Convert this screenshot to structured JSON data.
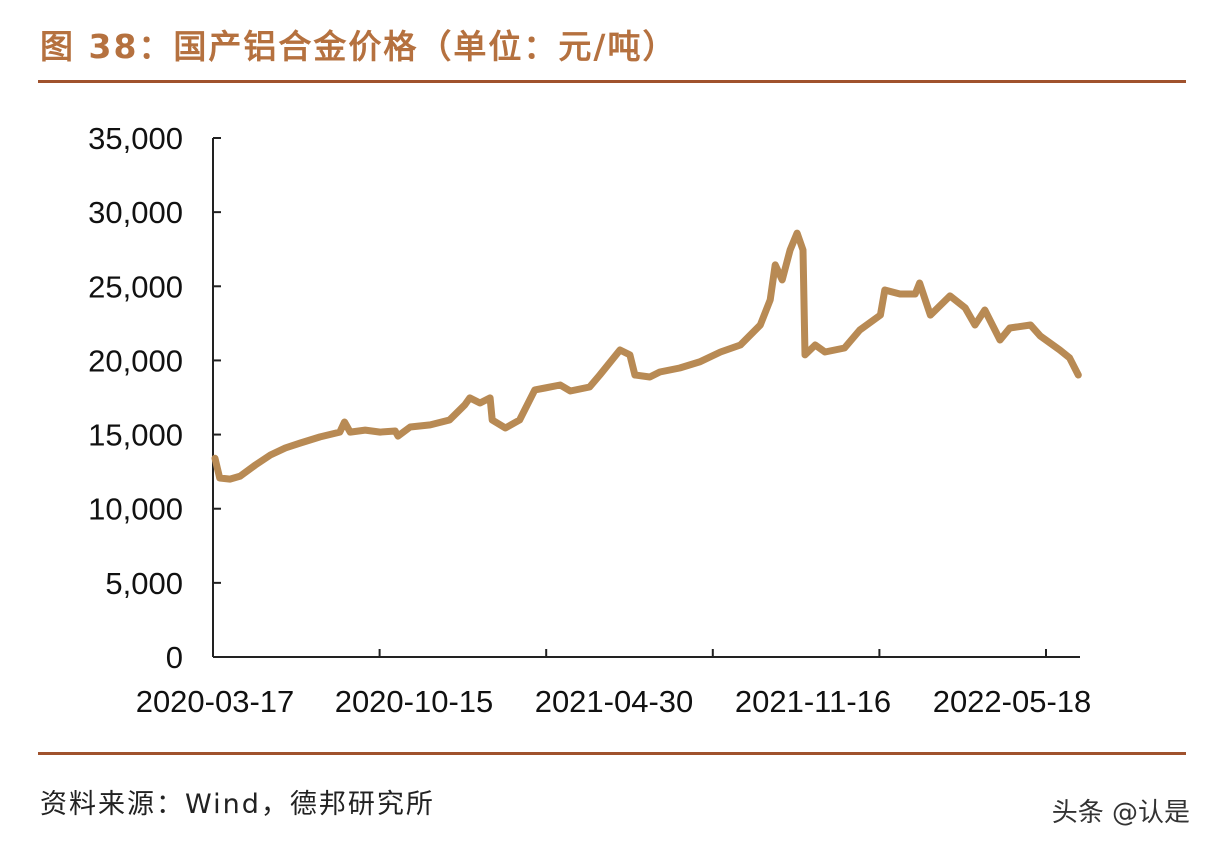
{
  "header": {
    "title": "图 38：国产铝合金价格（单位：元/吨）"
  },
  "footer": {
    "source": "资料来源：Wind，德邦研究所",
    "watermark": "头条 @认是"
  },
  "colors": {
    "line": "#b88a54",
    "rule": "#a0522d",
    "title": "#b5713f"
  },
  "chart_data": {
    "type": "line",
    "title": "",
    "xlabel": "",
    "ylabel": "",
    "ylim": [
      0,
      35000
    ],
    "yticks": [
      0,
      5000,
      10000,
      15000,
      20000,
      25000,
      30000,
      35000
    ],
    "ytick_labels": [
      "0",
      "5,000",
      "10,000",
      "15,000",
      "20,000",
      "25,000",
      "30,000",
      "35,000"
    ],
    "xtick_labels": [
      "2020-03-17",
      "2020-10-15",
      "2021-04-30",
      "2021-11-16",
      "2022-05-18"
    ],
    "grid": false,
    "legend": "none",
    "series": [
      {
        "x": [
          "2020-03-17",
          "2020-03-22",
          "2020-04-02",
          "2020-04-13",
          "2020-04-29",
          "2020-05-15",
          "2020-05-31",
          "2020-06-16",
          "2020-07-07",
          "2020-07-28",
          "2020-08-02",
          "2020-08-08",
          "2020-08-24",
          "2020-09-09",
          "2020-09-25",
          "2020-09-28",
          "2020-10-11",
          "2020-10-31",
          "2020-11-19",
          "2020-12-04",
          "2020-12-09",
          "2020-12-19",
          "2020-12-29",
          "2020-12-31",
          "2021-01-13",
          "2021-01-27",
          "2021-02-11",
          "2021-02-21",
          "2021-03-08",
          "2021-03-18",
          "2021-04-06",
          "2021-04-16",
          "2021-05-06",
          "2021-05-16",
          "2021-05-21",
          "2021-06-05",
          "2021-06-15",
          "2021-07-05",
          "2021-07-25",
          "2021-08-15",
          "2021-09-04",
          "2021-09-24",
          "2021-10-04",
          "2021-10-09",
          "2021-10-16",
          "2021-10-24",
          "2021-10-31",
          "2021-11-06",
          "2021-11-08",
          "2021-11-18",
          "2021-11-27",
          "2021-12-15",
          "2021-12-29",
          "2022-01-17",
          "2022-01-21",
          "2022-02-04",
          "2022-02-18",
          "2022-02-22",
          "2022-03-04",
          "2022-03-22",
          "2022-04-05",
          "2022-04-14",
          "2022-04-23",
          "2022-05-07",
          "2022-05-16",
          "2022-06-04",
          "2022-06-13",
          "2022-07-01",
          "2022-07-10",
          "2022-07-18"
        ],
        "values": [
          13400,
          12070,
          12000,
          12200,
          12950,
          13620,
          14100,
          14430,
          14840,
          15170,
          15850,
          15170,
          15300,
          15170,
          15240,
          14900,
          15510,
          15650,
          15980,
          17000,
          17470,
          17130,
          17470,
          15980,
          15440,
          15980,
          18010,
          18140,
          18340,
          17940,
          18210,
          19020,
          20700,
          20370,
          19020,
          18880,
          19220,
          19490,
          19900,
          20570,
          21040,
          22390,
          24080,
          26440,
          25430,
          27450,
          28590,
          27450,
          20370,
          21040,
          20570,
          20840,
          22050,
          23060,
          24750,
          24480,
          24480,
          25220,
          23060,
          24350,
          23540,
          22390,
          23400,
          21380,
          22190,
          22390,
          21650,
          20700,
          20170,
          19020
        ]
      }
    ]
  }
}
